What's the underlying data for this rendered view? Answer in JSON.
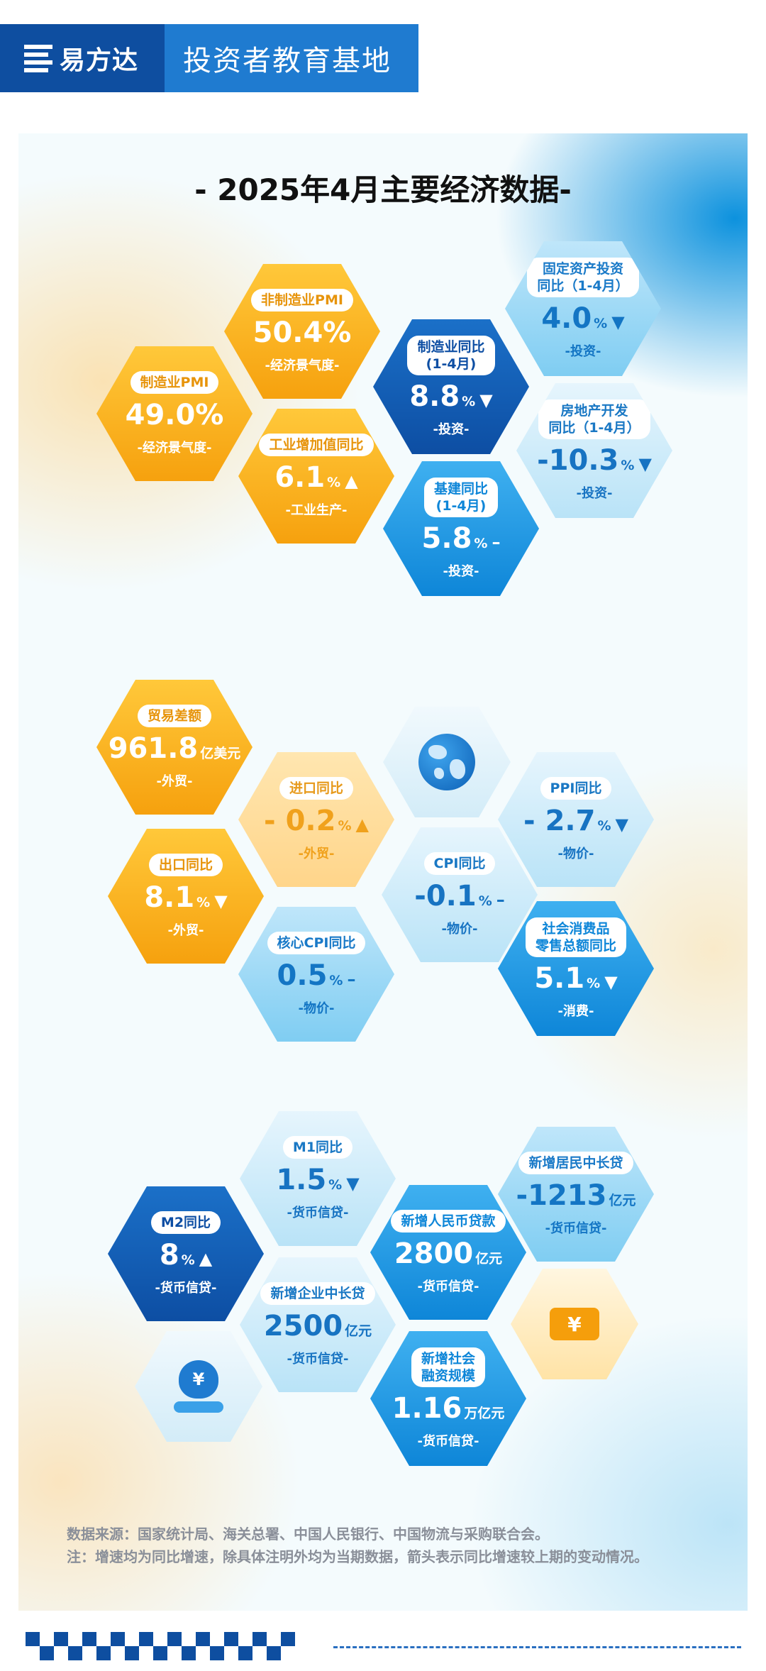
{
  "header": {
    "brand": "易方达",
    "title": "投资者教育基地"
  },
  "poster": {
    "title": "- 2025年4月主要经济数据-",
    "group1": [
      {
        "label": "制造业PMI",
        "value": "49.0%",
        "unit": "",
        "arrow": "",
        "category": "-经济景气度-"
      },
      {
        "label": "非制造业PMI",
        "value": "50.4%",
        "unit": "",
        "arrow": "",
        "category": "-经济景气度-"
      },
      {
        "label": "工业增加值同比",
        "value": "6.1",
        "unit": "%",
        "arrow": "▲",
        "category": "-工业生产-"
      },
      {
        "label": "制造业同比\n(1-4月)",
        "value": "8.8",
        "unit": "%",
        "arrow": "▼",
        "category": "-投资-"
      },
      {
        "label": "固定资产投资\n同比（1-4月）",
        "value": "4.0",
        "unit": "%",
        "arrow": "▼",
        "category": "-投资-"
      },
      {
        "label": "房地产开发\n同比（1-4月）",
        "value": "-10.3",
        "unit": "%",
        "arrow": "▼",
        "category": "-投资-"
      },
      {
        "label": "基建同比\n(1-4月)",
        "value": "5.8",
        "unit": "%",
        "arrow": "–",
        "category": "-投资-"
      }
    ],
    "group2": [
      {
        "label": "贸易差额",
        "value": "961.8",
        "unit": "亿美元",
        "arrow": "",
        "category": "-外贸-"
      },
      {
        "label": "进口同比",
        "value": "- 0.2",
        "unit": "%",
        "arrow": "▲",
        "category": "-外贸-"
      },
      {
        "label": "出口同比",
        "value": "8.1",
        "unit": "%",
        "arrow": "▼",
        "category": "-外贸-"
      },
      {
        "label": "CPI同比",
        "value": "-0.1",
        "unit": "%",
        "arrow": "–",
        "category": "-物价-"
      },
      {
        "label": "PPI同比",
        "value": "- 2.7",
        "unit": "%",
        "arrow": "▼",
        "category": "-物价-"
      },
      {
        "label": "核心CPI同比",
        "value": "0.5",
        "unit": "%",
        "arrow": "–",
        "category": "-物价-"
      },
      {
        "label": "社会消费品\n零售总额同比",
        "value": "5.1",
        "unit": "%",
        "arrow": "▼",
        "category": "-消费-"
      }
    ],
    "group3": [
      {
        "label": "M1同比",
        "value": "1.5",
        "unit": "%",
        "arrow": "▼",
        "category": "-货币信贷-"
      },
      {
        "label": "新增居民中长贷",
        "value": "-1213",
        "unit": "亿元",
        "arrow": "",
        "category": "-货币信贷-"
      },
      {
        "label": "M2同比",
        "value": "8",
        "unit": "%",
        "arrow": "▲",
        "category": "-货币信贷-"
      },
      {
        "label": "新增人民币贷款",
        "value": "2800",
        "unit": "亿元",
        "arrow": "",
        "category": "-货币信贷-"
      },
      {
        "label": "新增企业中长贷",
        "value": "2500",
        "unit": "亿元",
        "arrow": "",
        "category": "-货币信贷-"
      },
      {
        "label": "新增社会\n融资规模",
        "value": "1.16",
        "unit": "万亿元",
        "arrow": "",
        "category": "-货币信贷-"
      }
    ],
    "icons": {
      "yuan": "¥"
    },
    "footnotes": {
      "source": "数据来源：国家统计局、海关总署、中国人民银行、中国物流与采购联合会。",
      "note": "注：增速均为同比增速，除具体注明外均为当期数据，箭头表示同比增速较上期的变动情况。"
    }
  }
}
